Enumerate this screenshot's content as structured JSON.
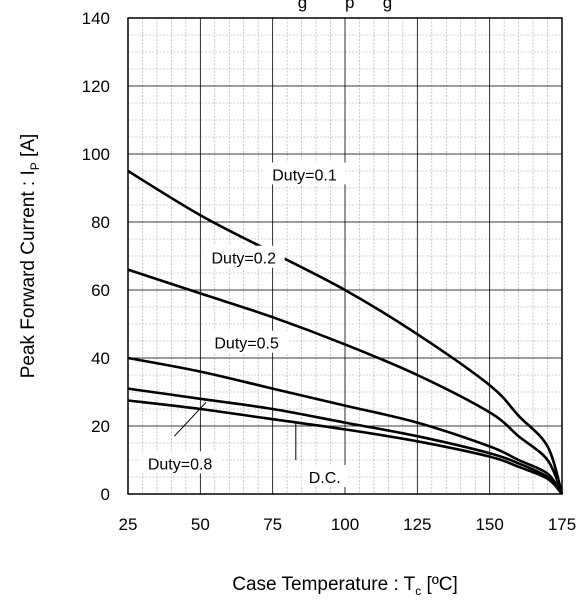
{
  "chart_data": {
    "type": "line",
    "title": "",
    "title_partial": "g        p      g",
    "xlabel": {
      "main": "Case Temperature : T",
      "sub": "c",
      "unit": " [ºC]"
    },
    "ylabel": {
      "main": "Peak Forward Current : I",
      "sub": "P",
      "unit": " [A]"
    },
    "xlim": [
      25,
      175
    ],
    "ylim": [
      0,
      140
    ],
    "xticks": [
      25,
      50,
      75,
      100,
      125,
      150,
      175
    ],
    "yticks": [
      0,
      20,
      40,
      60,
      80,
      100,
      120,
      140
    ],
    "grid": true,
    "minor_grid": true,
    "series": [
      {
        "name": "Duty=0.1",
        "x": [
          25,
          50,
          75,
          100,
          125,
          150,
          160,
          170,
          175
        ],
        "y": [
          95,
          82,
          71,
          60,
          47,
          32,
          23,
          14,
          0
        ]
      },
      {
        "name": "Duty=0.2",
        "x": [
          25,
          50,
          75,
          100,
          125,
          150,
          160,
          170,
          175
        ],
        "y": [
          66,
          59,
          52,
          44,
          35,
          24,
          17,
          10,
          0
        ]
      },
      {
        "name": "Duty=0.5",
        "x": [
          25,
          50,
          75,
          100,
          125,
          150,
          160,
          170,
          175
        ],
        "y": [
          40,
          36,
          31,
          26,
          21,
          14,
          10,
          6,
          0
        ]
      },
      {
        "name": "Duty=0.8",
        "x": [
          25,
          50,
          75,
          100,
          125,
          150,
          160,
          170,
          175
        ],
        "y": [
          31,
          28,
          25,
          21,
          17,
          12,
          9,
          5,
          0
        ]
      },
      {
        "name": "D.C.",
        "x": [
          25,
          50,
          75,
          100,
          125,
          150,
          160,
          170,
          175
        ],
        "y": [
          27.5,
          25,
          22,
          19,
          15.5,
          11,
          8,
          4.5,
          0
        ]
      }
    ],
    "annotations": [
      {
        "text": "Duty=0.1",
        "series": 0
      },
      {
        "text": "Duty=0.2",
        "series": 1
      },
      {
        "text": "Duty=0.5",
        "series": 2
      },
      {
        "text": "Duty=0.8",
        "series": 3,
        "leader": true
      },
      {
        "text": "D.C.",
        "series": 4,
        "leader": true
      }
    ]
  }
}
